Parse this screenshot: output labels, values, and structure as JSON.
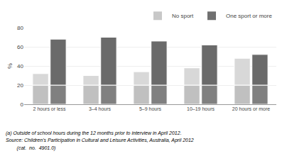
{
  "chart_data": {
    "type": "bar",
    "stacked": true,
    "categories": [
      "2 hours or less",
      "3–4 hours",
      "5–9 hours",
      "10–19 hours",
      "20 hours or more"
    ],
    "ylabel": "%",
    "ylim": [
      0,
      80
    ],
    "yticks": [
      0,
      20,
      40,
      60,
      80
    ],
    "grid": true,
    "legend": "upper right",
    "series": [
      {
        "name": "No sport",
        "color": "#c8c8c8",
        "segments": [
          {
            "color": "#c0c0c0",
            "values": [
              20,
              20,
              20,
              20,
              20
            ]
          },
          {
            "color": "#d8d8d8",
            "values": [
              12,
              10,
              14,
              18,
              28
            ]
          }
        ]
      },
      {
        "name": "One sport or more",
        "color": "#707070",
        "segments": [
          {
            "color": "#808080",
            "values": [
              20,
              20,
              20,
              20,
              20
            ]
          },
          {
            "color": "#6a6a6a",
            "values": [
              48,
              50,
              46,
              42,
              32
            ]
          }
        ]
      }
    ],
    "annotations": [
      "(a) Outside of school hours during the 12 months prior to interview in April 2012.",
      "Source: Children's Participation in Cultural and Leisure Activities, Australia, April 2012",
      "        (cat.  no.  4901.0)"
    ]
  }
}
